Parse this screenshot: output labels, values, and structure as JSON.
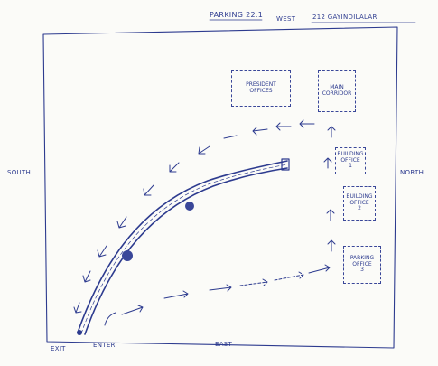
{
  "header": {
    "title": "PARKING 22.1",
    "direction_west": "WEST",
    "street": "212 GAYINDILALAR"
  },
  "directions": {
    "south": "SOUTH",
    "north": "NORTH",
    "east": "EAST"
  },
  "gates": {
    "exit": "EXIT",
    "enter": "ENTER"
  },
  "offices": {
    "president": "PRESIDENT\nOFFICES",
    "main": "MAIN\nCORRIDOR",
    "building_a": "BUILDING\nOFFICE\n1",
    "building_b": "BUILDING\nOFFICE\n2",
    "parking": "PARKING\nOFFICE\n3"
  },
  "colors": {
    "ink": "#2d3b8f",
    "paper": "#fbfbf8"
  }
}
